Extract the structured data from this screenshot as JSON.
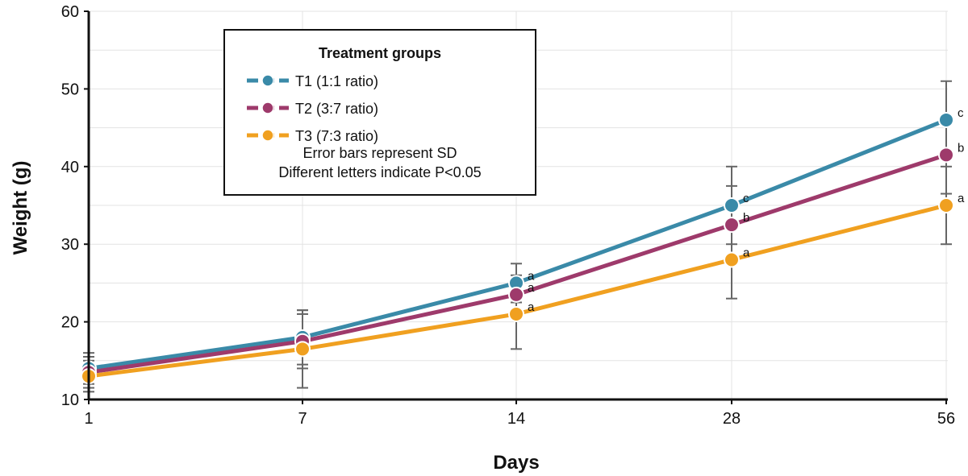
{
  "chart_data": {
    "type": "line",
    "title": "",
    "xlabel": "Days",
    "ylabel": "Weight (g)",
    "categories": [
      "1",
      "7",
      "14",
      "28",
      "56"
    ],
    "y_ticks": [
      10,
      20,
      30,
      40,
      50,
      60
    ],
    "ylim": [
      10,
      60
    ],
    "grid": true,
    "legend": {
      "title": "Treatment groups",
      "placement": "top-left",
      "notes": [
        "Error bars represent SD",
        "Different letters indicate P<0.05"
      ]
    },
    "series": [
      {
        "name": "T1 (1:1 ratio)",
        "color": "#3a8aa8",
        "values": [
          14,
          18,
          25,
          35,
          46
        ],
        "sd": [
          2,
          3.5,
          2.5,
          5,
          5
        ],
        "letters": [
          "",
          "",
          "a",
          "c",
          "c"
        ]
      },
      {
        "name": "T2 (3:7 ratio)",
        "color": "#9e3a6b",
        "values": [
          13.5,
          17.5,
          23.5,
          32.5,
          41.5
        ],
        "sd": [
          2,
          3.5,
          2.5,
          5,
          5
        ],
        "letters": [
          "",
          "",
          "a",
          "b",
          "b"
        ]
      },
      {
        "name": "T3 (7:3 ratio)",
        "color": "#f0a020",
        "values": [
          13,
          16.5,
          21,
          28,
          35
        ],
        "sd": [
          2,
          5,
          4.5,
          5,
          5
        ],
        "letters": [
          "",
          "",
          "a",
          "a",
          "a"
        ]
      }
    ]
  }
}
